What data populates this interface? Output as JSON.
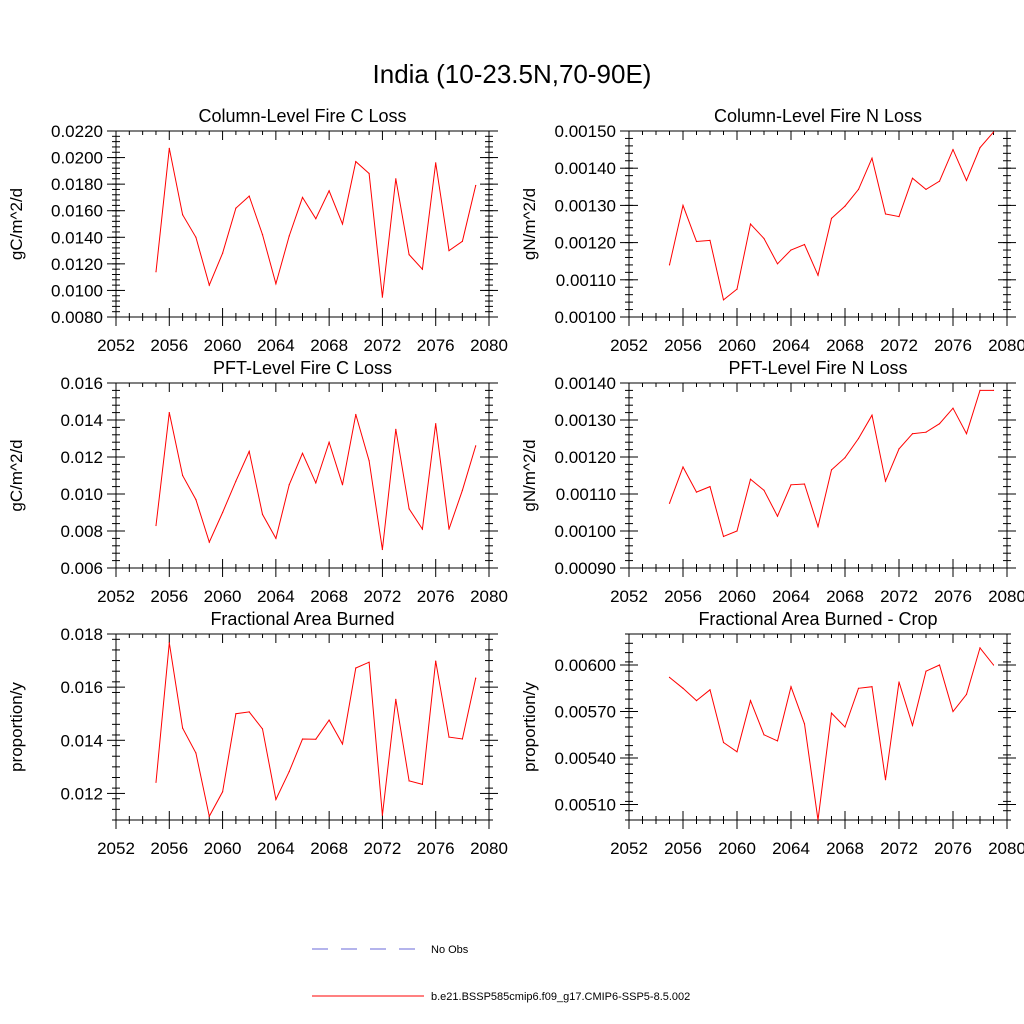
{
  "figure": {
    "title": "India (10-23.5N,70-90E)",
    "series_color": "#ff0000",
    "obs_color": "#6a6ad8"
  },
  "legend": {
    "items": [
      {
        "label": "No Obs",
        "style": "dashed",
        "color": "#6a6ad8"
      },
      {
        "label": "b.e21.BSSP585cmip6.f09_g17.CMIP6-SSP5-8.5.002",
        "style": "solid",
        "color": "#ff0000"
      }
    ]
  },
  "chart_data": [
    {
      "type": "line",
      "title": "Column-Level Fire C Loss",
      "xlabel": "",
      "ylabel": "gC/m^2/d",
      "xlim": [
        2052,
        2080
      ],
      "ylim": [
        0.008,
        0.022
      ],
      "xticks": [
        "2052",
        "2056",
        "2060",
        "2064",
        "2068",
        "2072",
        "2076",
        "2080"
      ],
      "yticks": [
        "0.0080",
        "0.0100",
        "0.0120",
        "0.0140",
        "0.0160",
        "0.0180",
        "0.0200",
        "0.0220"
      ],
      "x": [
        2055,
        2056,
        2057,
        2058,
        2059,
        2060,
        2061,
        2062,
        2063,
        2064,
        2065,
        2066,
        2067,
        2068,
        2069,
        2070,
        2071,
        2072,
        2073,
        2074,
        2075,
        2076,
        2077,
        2078,
        2079
      ],
      "series": [
        {
          "name": "b.e21.BSSP585cmip6.f09_g17.CMIP6-SSP5-8.5.002",
          "values": [
            0.0114,
            0.0207,
            0.0157,
            0.014,
            0.0104,
            0.0128,
            0.0162,
            0.0171,
            0.0142,
            0.0105,
            0.0141,
            0.017,
            0.0154,
            0.0175,
            0.015,
            0.0197,
            0.0188,
            0.0095,
            0.0184,
            0.0127,
            0.0116,
            0.0196,
            0.013,
            0.0137,
            0.0179
          ]
        }
      ]
    },
    {
      "type": "line",
      "title": "Column-Level Fire N Loss",
      "xlabel": "",
      "ylabel": "gN/m^2/d",
      "xlim": [
        2052,
        2080
      ],
      "ylim": [
        0.001,
        0.0015
      ],
      "xticks": [
        "2052",
        "2056",
        "2060",
        "2064",
        "2068",
        "2072",
        "2076",
        "2080"
      ],
      "yticks": [
        "0.00100",
        "0.00110",
        "0.00120",
        "0.00130",
        "0.00140",
        "0.00150"
      ],
      "x": [
        2055,
        2056,
        2057,
        2058,
        2059,
        2060,
        2061,
        2062,
        2063,
        2064,
        2065,
        2066,
        2067,
        2068,
        2069,
        2070,
        2071,
        2072,
        2073,
        2074,
        2075,
        2076,
        2077,
        2078,
        2079
      ],
      "series": [
        {
          "name": "b.e21.BSSP585cmip6.f09_g17.CMIP6-SSP5-8.5.002",
          "values": [
            0.00114,
            0.0013,
            0.001203,
            0.001206,
            0.001046,
            0.001075,
            0.00125,
            0.001211,
            0.001143,
            0.00118,
            0.001195,
            0.001112,
            0.001265,
            0.001298,
            0.001343,
            0.001427,
            0.001277,
            0.00127,
            0.001373,
            0.001343,
            0.001365,
            0.00145,
            0.001367,
            0.001455,
            0.001497
          ]
        }
      ]
    },
    {
      "type": "line",
      "title": "PFT-Level Fire C Loss",
      "xlabel": "",
      "ylabel": "gC/m^2/d",
      "xlim": [
        2052,
        2080
      ],
      "ylim": [
        0.006,
        0.016
      ],
      "xticks": [
        "2052",
        "2056",
        "2060",
        "2064",
        "2068",
        "2072",
        "2076",
        "2080"
      ],
      "yticks": [
        "0.006",
        "0.008",
        "0.010",
        "0.012",
        "0.014",
        "0.016"
      ],
      "x": [
        2055,
        2056,
        2057,
        2058,
        2059,
        2060,
        2061,
        2062,
        2063,
        2064,
        2065,
        2066,
        2067,
        2068,
        2069,
        2070,
        2071,
        2072,
        2073,
        2074,
        2075,
        2076,
        2077,
        2078,
        2079
      ],
      "series": [
        {
          "name": "b.e21.BSSP585cmip6.f09_g17.CMIP6-SSP5-8.5.002",
          "values": [
            0.0083,
            0.0144,
            0.011,
            0.0097,
            0.0074,
            0.009,
            0.0107,
            0.0123,
            0.0089,
            0.0076,
            0.0105,
            0.0122,
            0.0106,
            0.0128,
            0.0105,
            0.0143,
            0.0118,
            0.007,
            0.0135,
            0.0092,
            0.0081,
            0.0138,
            0.0081,
            0.0102,
            0.0126
          ]
        }
      ]
    },
    {
      "type": "line",
      "title": "PFT-Level Fire N Loss",
      "xlabel": "",
      "ylabel": "gN/m^2/d",
      "xlim": [
        2052,
        2080
      ],
      "ylim": [
        0.0009,
        0.0014
      ],
      "xticks": [
        "2052",
        "2056",
        "2060",
        "2064",
        "2068",
        "2072",
        "2076",
        "2080"
      ],
      "yticks": [
        "0.00090",
        "0.00100",
        "0.00110",
        "0.00120",
        "0.00130",
        "0.00140"
      ],
      "x": [
        2055,
        2056,
        2057,
        2058,
        2059,
        2060,
        2061,
        2062,
        2063,
        2064,
        2065,
        2066,
        2067,
        2068,
        2069,
        2070,
        2071,
        2072,
        2073,
        2074,
        2075,
        2076,
        2077,
        2078,
        2079
      ],
      "series": [
        {
          "name": "b.e21.BSSP585cmip6.f09_g17.CMIP6-SSP5-8.5.002",
          "values": [
            0.001075,
            0.001173,
            0.001105,
            0.00112,
            0.000985,
            0.001,
            0.00114,
            0.00111,
            0.00104,
            0.001125,
            0.001127,
            0.001012,
            0.001165,
            0.001198,
            0.00125,
            0.001313,
            0.001135,
            0.001222,
            0.001263,
            0.001267,
            0.00129,
            0.001332,
            0.001263,
            0.00138,
            0.00138
          ]
        }
      ]
    },
    {
      "type": "line",
      "title": "Fractional Area Burned",
      "xlabel": "",
      "ylabel": "proportion/y",
      "xlim": [
        2052,
        2080
      ],
      "ylim": [
        0.011,
        0.018
      ],
      "xticks": [
        "2052",
        "2056",
        "2060",
        "2064",
        "2068",
        "2072",
        "2076",
        "2080"
      ],
      "yticks": [
        "0.012",
        "0.014",
        "0.016",
        "0.018"
      ],
      "x": [
        2055,
        2056,
        2057,
        2058,
        2059,
        2060,
        2061,
        2062,
        2063,
        2064,
        2065,
        2066,
        2067,
        2068,
        2069,
        2070,
        2071,
        2072,
        2073,
        2074,
        2075,
        2076,
        2077,
        2078,
        2079
      ],
      "series": [
        {
          "name": "b.e21.BSSP585cmip6.f09_g17.CMIP6-SSP5-8.5.002",
          "values": [
            0.01242,
            0.01767,
            0.01446,
            0.01352,
            0.01114,
            0.01206,
            0.015,
            0.01507,
            0.01443,
            0.01177,
            0.01282,
            0.01405,
            0.01404,
            0.01476,
            0.01386,
            0.01672,
            0.01694,
            0.01118,
            0.01554,
            0.01247,
            0.01234,
            0.01698,
            0.01412,
            0.01405,
            0.01634
          ]
        }
      ]
    },
    {
      "type": "line",
      "title": "Fractional Area Burned - Crop",
      "xlabel": "",
      "ylabel": "proportion/y",
      "xlim": [
        2052,
        2080
      ],
      "ylim": [
        0.005,
        0.0062
      ],
      "xticks": [
        "2052",
        "2056",
        "2060",
        "2064",
        "2068",
        "2072",
        "2076",
        "2080"
      ],
      "yticks": [
        "0.00510",
        "0.00540",
        "0.00570",
        "0.00600"
      ],
      "x": [
        2055,
        2056,
        2057,
        2058,
        2059,
        2060,
        2061,
        2062,
        2063,
        2064,
        2065,
        2066,
        2067,
        2068,
        2069,
        2070,
        2071,
        2072,
        2073,
        2074,
        2075,
        2076,
        2077,
        2078,
        2079
      ],
      "series": [
        {
          "name": "b.e21.BSSP585cmip6.f09_g17.CMIP6-SSP5-8.5.002",
          "values": [
            0.00592,
            0.00585,
            0.00577,
            0.00584,
            0.0055,
            0.00544,
            0.00577,
            0.00555,
            0.00551,
            0.00586,
            0.00562,
            0.005,
            0.00569,
            0.0056,
            0.00585,
            0.00586,
            0.00526,
            0.00589,
            0.00561,
            0.00596,
            0.006,
            0.0057,
            0.00581,
            0.00611,
            0.006
          ]
        }
      ]
    }
  ]
}
